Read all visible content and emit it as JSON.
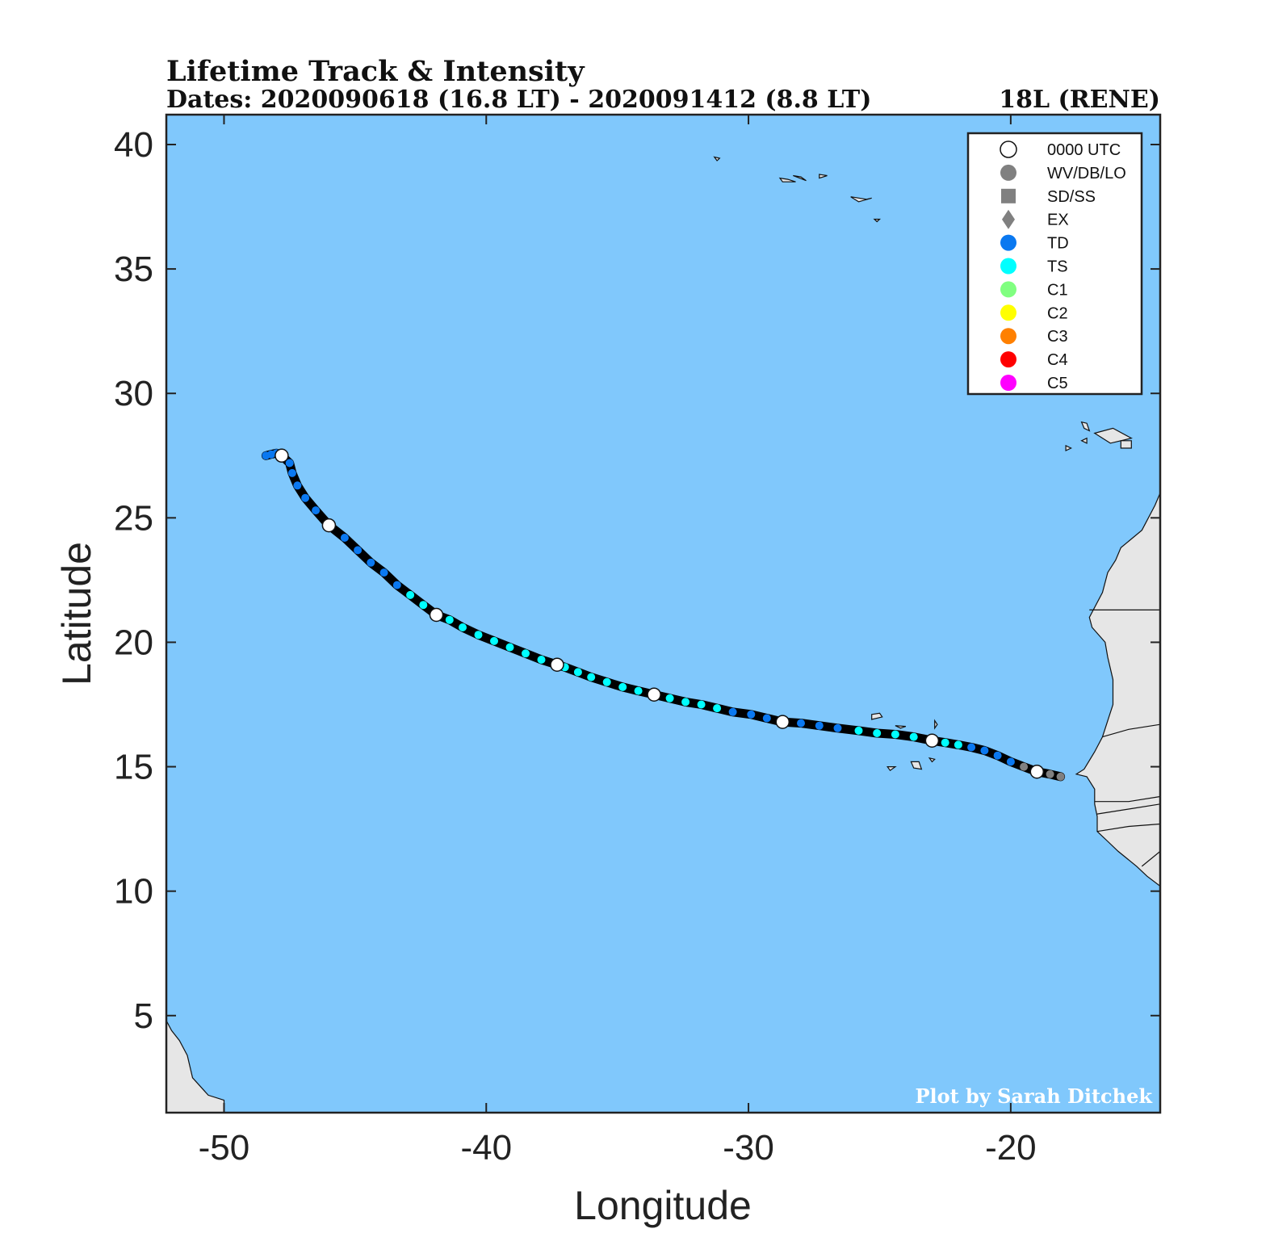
{
  "title": "Lifetime Track & Intensity",
  "subtitle_dates": "Dates: 2020090618 (16.8 LT) - 2020091412 (8.8 LT)",
  "storm_id": "18L (RENE)",
  "credit": "Plot by Sarah Ditchek",
  "colors": {
    "ocean": "#80c8fc",
    "land": "#e6e6e6",
    "track": "#000000",
    "TD": "#0a78f0",
    "TS": "#00ffff",
    "C1": "#80ff80",
    "C2": "#ffff00",
    "C3": "#ff8000",
    "C4": "#ff0000",
    "C5": "#ff00ff",
    "LO": "#808080",
    "UTC0000": "#ffffff"
  },
  "chart_data": {
    "type": "scatter",
    "xlabel": "Longitude",
    "ylabel": "Latitude",
    "xlim": [
      -52.2,
      -14.3
    ],
    "ylim": [
      1.1,
      41.2
    ],
    "xticks": [
      -50,
      -40,
      -30,
      -20
    ],
    "yticks": [
      5,
      10,
      15,
      20,
      25,
      30,
      35,
      40
    ],
    "xtick_labels": [
      "-50",
      "-40",
      "-30",
      "-20"
    ],
    "ytick_labels": [
      "5",
      "10",
      "15",
      "20",
      "25",
      "30",
      "35",
      "40"
    ],
    "legend_position": "top-right",
    "legend": [
      {
        "label": "0000 UTC",
        "marker": "circle",
        "color": "#ffffff"
      },
      {
        "label": "WV/DB/LO",
        "marker": "circle",
        "color": "#808080"
      },
      {
        "label": "SD/SS",
        "marker": "square",
        "color": "#808080"
      },
      {
        "label": "EX",
        "marker": "diamond",
        "color": "#808080"
      },
      {
        "label": "TD",
        "marker": "circle",
        "color": "#0a78f0"
      },
      {
        "label": "TS",
        "marker": "circle",
        "color": "#00ffff"
      },
      {
        "label": "C1",
        "marker": "circle",
        "color": "#80ff80"
      },
      {
        "label": "C2",
        "marker": "circle",
        "color": "#ffff00"
      },
      {
        "label": "C3",
        "marker": "circle",
        "color": "#ff8000"
      },
      {
        "label": "C4",
        "marker": "circle",
        "color": "#ff0000"
      },
      {
        "label": "C5",
        "marker": "circle",
        "color": "#ff00ff"
      }
    ],
    "track": [
      {
        "lon": -18.1,
        "lat": 14.6,
        "cat": "LO"
      },
      {
        "lon": -18.5,
        "lat": 14.7,
        "cat": "LO"
      },
      {
        "lon": -19.0,
        "lat": 14.8,
        "cat": "UTC0000"
      },
      {
        "lon": -19.5,
        "lat": 15.0,
        "cat": "LO"
      },
      {
        "lon": -20.0,
        "lat": 15.2,
        "cat": "TD"
      },
      {
        "lon": -20.5,
        "lat": 15.45,
        "cat": "TD"
      },
      {
        "lon": -21.0,
        "lat": 15.65,
        "cat": "TD"
      },
      {
        "lon": -21.5,
        "lat": 15.78,
        "cat": "TD"
      },
      {
        "lon": -22.0,
        "lat": 15.88,
        "cat": "TS"
      },
      {
        "lon": -22.5,
        "lat": 15.97,
        "cat": "TS"
      },
      {
        "lon": -23.0,
        "lat": 16.05,
        "cat": "UTC0000"
      },
      {
        "lon": -23.7,
        "lat": 16.2,
        "cat": "TS"
      },
      {
        "lon": -24.4,
        "lat": 16.3,
        "cat": "TS"
      },
      {
        "lon": -25.1,
        "lat": 16.35,
        "cat": "TS"
      },
      {
        "lon": -25.8,
        "lat": 16.45,
        "cat": "TS"
      },
      {
        "lon": -26.6,
        "lat": 16.55,
        "cat": "TD"
      },
      {
        "lon": -27.3,
        "lat": 16.65,
        "cat": "TD"
      },
      {
        "lon": -28.0,
        "lat": 16.75,
        "cat": "TD"
      },
      {
        "lon": -28.7,
        "lat": 16.8,
        "cat": "UTC0000"
      },
      {
        "lon": -29.3,
        "lat": 16.95,
        "cat": "TD"
      },
      {
        "lon": -29.9,
        "lat": 17.1,
        "cat": "TD"
      },
      {
        "lon": -30.6,
        "lat": 17.2,
        "cat": "TD"
      },
      {
        "lon": -31.2,
        "lat": 17.35,
        "cat": "TS"
      },
      {
        "lon": -31.8,
        "lat": 17.5,
        "cat": "TS"
      },
      {
        "lon": -32.4,
        "lat": 17.6,
        "cat": "TS"
      },
      {
        "lon": -33.0,
        "lat": 17.75,
        "cat": "TS"
      },
      {
        "lon": -33.6,
        "lat": 17.9,
        "cat": "UTC0000"
      },
      {
        "lon": -34.2,
        "lat": 18.05,
        "cat": "TS"
      },
      {
        "lon": -34.8,
        "lat": 18.2,
        "cat": "TS"
      },
      {
        "lon": -35.4,
        "lat": 18.4,
        "cat": "TS"
      },
      {
        "lon": -36.0,
        "lat": 18.6,
        "cat": "TS"
      },
      {
        "lon": -36.5,
        "lat": 18.8,
        "cat": "TS"
      },
      {
        "lon": -37.0,
        "lat": 19.0,
        "cat": "TS"
      },
      {
        "lon": -37.3,
        "lat": 19.1,
        "cat": "UTC0000"
      },
      {
        "lon": -37.9,
        "lat": 19.3,
        "cat": "TS"
      },
      {
        "lon": -38.5,
        "lat": 19.55,
        "cat": "TS"
      },
      {
        "lon": -39.1,
        "lat": 19.8,
        "cat": "TS"
      },
      {
        "lon": -39.7,
        "lat": 20.05,
        "cat": "TS"
      },
      {
        "lon": -40.3,
        "lat": 20.3,
        "cat": "TS"
      },
      {
        "lon": -40.9,
        "lat": 20.6,
        "cat": "TS"
      },
      {
        "lon": -41.4,
        "lat": 20.9,
        "cat": "TS"
      },
      {
        "lon": -41.9,
        "lat": 21.1,
        "cat": "UTC0000"
      },
      {
        "lon": -42.4,
        "lat": 21.5,
        "cat": "TS"
      },
      {
        "lon": -42.9,
        "lat": 21.9,
        "cat": "TS"
      },
      {
        "lon": -43.4,
        "lat": 22.3,
        "cat": "TD"
      },
      {
        "lon": -43.9,
        "lat": 22.8,
        "cat": "TD"
      },
      {
        "lon": -44.4,
        "lat": 23.2,
        "cat": "TD"
      },
      {
        "lon": -44.9,
        "lat": 23.7,
        "cat": "TD"
      },
      {
        "lon": -45.4,
        "lat": 24.2,
        "cat": "TD"
      },
      {
        "lon": -46.0,
        "lat": 24.7,
        "cat": "UTC0000"
      },
      {
        "lon": -46.5,
        "lat": 25.3,
        "cat": "TD"
      },
      {
        "lon": -46.9,
        "lat": 25.8,
        "cat": "TD"
      },
      {
        "lon": -47.2,
        "lat": 26.3,
        "cat": "TD"
      },
      {
        "lon": -47.4,
        "lat": 26.8,
        "cat": "TD"
      },
      {
        "lon": -47.5,
        "lat": 27.2,
        "cat": "TD"
      },
      {
        "lon": -47.8,
        "lat": 27.5,
        "cat": "UTC0000"
      },
      {
        "lon": -48.0,
        "lat": 27.6,
        "cat": "TD"
      },
      {
        "lon": -48.2,
        "lat": 27.55,
        "cat": "TD"
      },
      {
        "lon": -48.4,
        "lat": 27.5,
        "cat": "TD"
      }
    ],
    "land": [
      {
        "name": "west-africa",
        "coords": [
          [
            -14.3,
            26.0
          ],
          [
            -14.5,
            25.5
          ],
          [
            -15.0,
            24.5
          ],
          [
            -15.8,
            23.8
          ],
          [
            -16.0,
            23.3
          ],
          [
            -16.3,
            22.8
          ],
          [
            -16.5,
            22.0
          ],
          [
            -17.0,
            21.0
          ],
          [
            -16.9,
            20.6
          ],
          [
            -16.4,
            20.0
          ],
          [
            -16.3,
            19.4
          ],
          [
            -16.1,
            18.5
          ],
          [
            -16.1,
            17.5
          ],
          [
            -16.5,
            16.2
          ],
          [
            -16.8,
            15.6
          ],
          [
            -17.2,
            14.9
          ],
          [
            -17.5,
            14.7
          ],
          [
            -17.1,
            14.6
          ],
          [
            -16.8,
            14.1
          ],
          [
            -16.8,
            13.5
          ],
          [
            -16.7,
            13.0
          ],
          [
            -16.7,
            12.4
          ],
          [
            -16.3,
            12.0
          ],
          [
            -15.9,
            11.6
          ],
          [
            -15.2,
            11.0
          ],
          [
            -14.8,
            10.6
          ],
          [
            -14.3,
            10.2
          ],
          [
            -14.3,
            26.0
          ]
        ]
      },
      {
        "name": "south-america",
        "coords": [
          [
            -52.2,
            1.1
          ],
          [
            -52.2,
            4.8
          ],
          [
            -52.0,
            4.4
          ],
          [
            -51.7,
            4.0
          ],
          [
            -51.4,
            3.4
          ],
          [
            -51.2,
            2.5
          ],
          [
            -50.6,
            1.8
          ],
          [
            -50.0,
            1.6
          ],
          [
            -50.0,
            1.1
          ],
          [
            -52.2,
            1.1
          ]
        ]
      },
      {
        "name": "cape-verde-1",
        "coords": [
          [
            -25.3,
            17.1
          ],
          [
            -25.0,
            17.15
          ],
          [
            -24.9,
            17.0
          ],
          [
            -25.3,
            16.9
          ],
          [
            -25.3,
            17.1
          ]
        ]
      },
      {
        "name": "cape-verde-2",
        "coords": [
          [
            -24.4,
            16.65
          ],
          [
            -24.0,
            16.62
          ],
          [
            -24.2,
            16.55
          ],
          [
            -24.4,
            16.65
          ]
        ]
      },
      {
        "name": "cape-verde-3",
        "coords": [
          [
            -22.9,
            16.85
          ],
          [
            -22.8,
            16.7
          ],
          [
            -22.9,
            16.55
          ],
          [
            -22.9,
            16.85
          ]
        ]
      },
      {
        "name": "cape-verde-4",
        "coords": [
          [
            -23.8,
            15.2
          ],
          [
            -23.5,
            15.2
          ],
          [
            -23.4,
            14.9
          ],
          [
            -23.7,
            14.95
          ],
          [
            -23.8,
            15.2
          ]
        ]
      },
      {
        "name": "cape-verde-5",
        "coords": [
          [
            -24.7,
            15.0
          ],
          [
            -24.4,
            15.0
          ],
          [
            -24.6,
            14.85
          ],
          [
            -24.7,
            15.0
          ]
        ]
      },
      {
        "name": "cape-verde-6",
        "coords": [
          [
            -23.1,
            15.35
          ],
          [
            -22.9,
            15.3
          ],
          [
            -23.0,
            15.2
          ],
          [
            -23.1,
            15.35
          ]
        ]
      },
      {
        "name": "canaries-1",
        "coords": [
          [
            -17.3,
            28.85
          ],
          [
            -17.1,
            28.8
          ],
          [
            -17.0,
            28.5
          ],
          [
            -17.2,
            28.6
          ],
          [
            -17.3,
            28.85
          ]
        ]
      },
      {
        "name": "canaries-2",
        "coords": [
          [
            -16.8,
            28.4
          ],
          [
            -16.1,
            28.6
          ],
          [
            -15.4,
            28.2
          ],
          [
            -16.2,
            28.0
          ],
          [
            -16.8,
            28.4
          ]
        ]
      },
      {
        "name": "canaries-3",
        "coords": [
          [
            -15.8,
            28.1
          ],
          [
            -15.4,
            28.1
          ],
          [
            -15.4,
            27.8
          ],
          [
            -15.8,
            27.8
          ],
          [
            -15.8,
            28.1
          ]
        ]
      },
      {
        "name": "canaries-4",
        "coords": [
          [
            -17.9,
            27.9
          ],
          [
            -17.7,
            27.8
          ],
          [
            -17.9,
            27.7
          ],
          [
            -17.9,
            27.9
          ]
        ]
      },
      {
        "name": "canaries-5",
        "coords": [
          [
            -17.3,
            28.1
          ],
          [
            -17.1,
            28.2
          ],
          [
            -17.1,
            28.0
          ],
          [
            -17.3,
            28.1
          ]
        ]
      },
      {
        "name": "azores-1",
        "coords": [
          [
            -28.8,
            38.65
          ],
          [
            -28.5,
            38.6
          ],
          [
            -28.2,
            38.5
          ],
          [
            -28.7,
            38.5
          ],
          [
            -28.8,
            38.65
          ]
        ]
      },
      {
        "name": "azores-2",
        "coords": [
          [
            -27.3,
            38.8
          ],
          [
            -27.0,
            38.75
          ],
          [
            -27.3,
            38.65
          ],
          [
            -27.3,
            38.8
          ]
        ]
      },
      {
        "name": "azores-3",
        "coords": [
          [
            -26.1,
            37.9
          ],
          [
            -25.5,
            37.8
          ],
          [
            -25.3,
            37.85
          ],
          [
            -25.8,
            37.7
          ],
          [
            -26.1,
            37.9
          ]
        ]
      },
      {
        "name": "azores-4",
        "coords": [
          [
            -25.2,
            37.0
          ],
          [
            -25.0,
            37.0
          ],
          [
            -25.1,
            36.9
          ],
          [
            -25.2,
            37.0
          ]
        ]
      },
      {
        "name": "azores-5",
        "coords": [
          [
            -31.3,
            39.5
          ],
          [
            -31.1,
            39.45
          ],
          [
            -31.2,
            39.35
          ],
          [
            -31.3,
            39.5
          ]
        ]
      },
      {
        "name": "azores-6",
        "coords": [
          [
            -28.3,
            38.75
          ],
          [
            -27.8,
            38.55
          ],
          [
            -28.0,
            38.7
          ],
          [
            -28.3,
            38.75
          ]
        ]
      }
    ],
    "borders": [
      {
        "name": "border-mauritania-north",
        "coords": [
          [
            -17.0,
            21.3
          ],
          [
            -14.3,
            21.3
          ]
        ]
      },
      {
        "name": "border-senegal-mauritania",
        "coords": [
          [
            -16.5,
            16.2
          ],
          [
            -15.5,
            16.5
          ],
          [
            -14.3,
            16.7
          ]
        ]
      },
      {
        "name": "border-gambia-north",
        "coords": [
          [
            -16.8,
            13.6
          ],
          [
            -15.5,
            13.6
          ],
          [
            -14.3,
            13.8
          ]
        ]
      },
      {
        "name": "border-gambia-south",
        "coords": [
          [
            -16.7,
            13.1
          ],
          [
            -15.5,
            13.3
          ],
          [
            -14.3,
            13.5
          ]
        ]
      },
      {
        "name": "border-guinea-bissau",
        "coords": [
          [
            -16.7,
            12.4
          ],
          [
            -15.5,
            12.6
          ],
          [
            -14.3,
            12.7
          ]
        ]
      },
      {
        "name": "border-guinea",
        "coords": [
          [
            -15.0,
            11.0
          ],
          [
            -14.3,
            11.6
          ]
        ]
      }
    ]
  }
}
